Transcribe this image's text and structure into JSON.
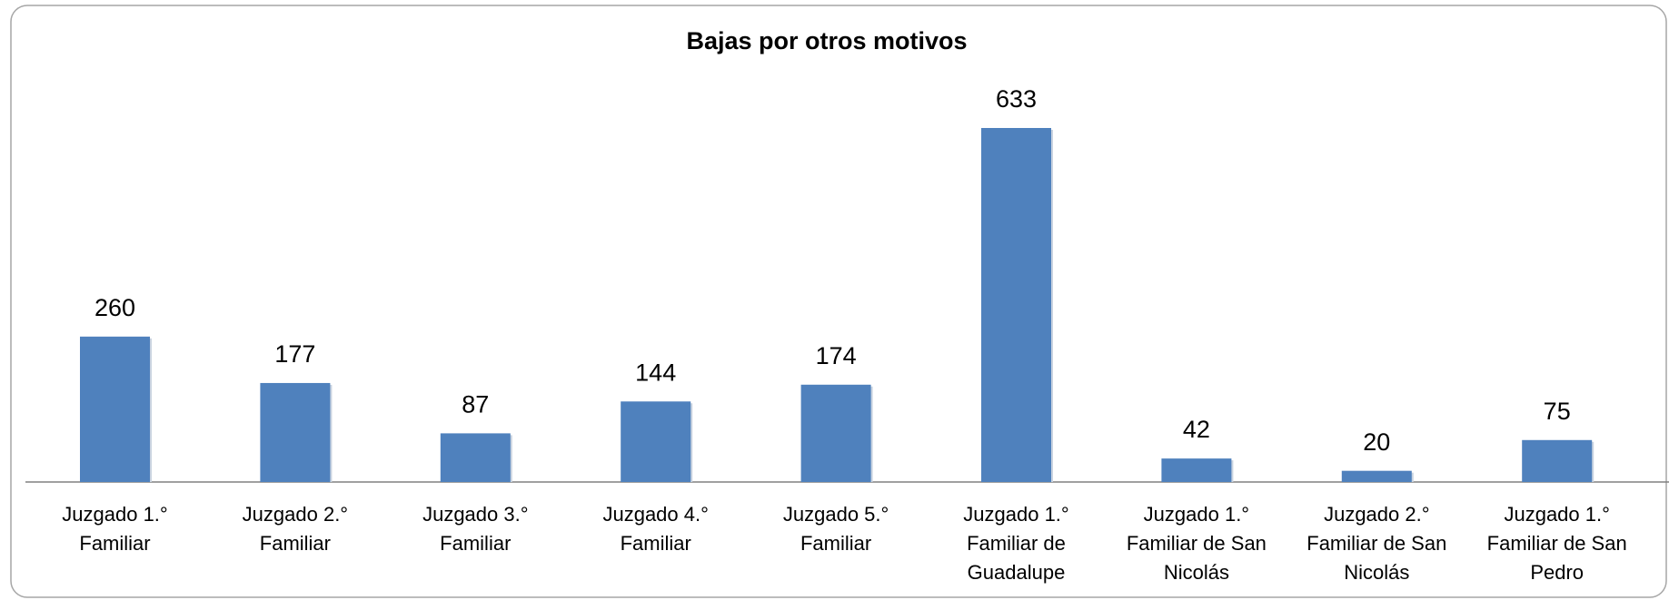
{
  "chart_data": {
    "type": "bar",
    "title": "Bajas por otros motivos",
    "categories": [
      "Juzgado 1.° Familiar",
      "Juzgado 2.° Familiar",
      "Juzgado 3.° Familiar",
      "Juzgado 4.° Familiar",
      "Juzgado 5.° Familiar",
      "Juzgado 1.° Familiar de Guadalupe",
      "Juzgado 1.° Familiar de San Nicolás",
      "Juzgado 2.° Familiar de San Nicolás",
      "Juzgado 1.° Familiar de San Pedro"
    ],
    "values": [
      260,
      177,
      87,
      144,
      174,
      633,
      42,
      20,
      75
    ],
    "color": "#4f81bd"
  }
}
